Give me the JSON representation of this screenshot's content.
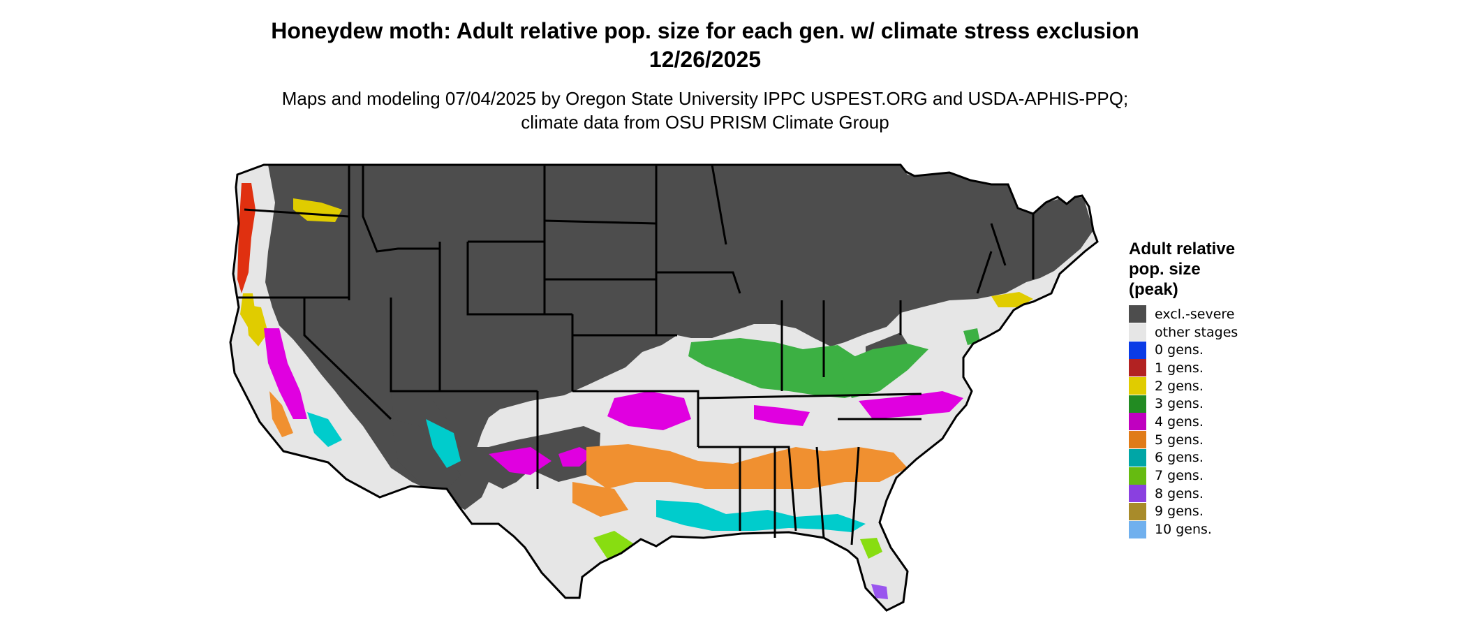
{
  "title": "Honeydew moth: Adult relative pop. size for each gen. w/ climate stress exclusion 12/26/2025",
  "subtitle": "Maps and modeling 07/04/2025 by Oregon State University IPPC USPEST.ORG and USDA-APHIS-PPQ; climate data from OSU PRISM Climate Group",
  "legend": {
    "title": "Adult relative pop. size (peak)",
    "items": [
      {
        "label": "excl.-severe",
        "color": "#4d4d4d"
      },
      {
        "label": "other stages",
        "color": "#e6e6e6"
      },
      {
        "label": "0 gens.",
        "color": "#0a3be6"
      },
      {
        "label": "1 gens.",
        "color": "#b22222"
      },
      {
        "label": "2 gens.",
        "color": "#e0cc00"
      },
      {
        "label": "3 gens.",
        "color": "#228b22"
      },
      {
        "label": "4 gens.",
        "color": "#c000c0"
      },
      {
        "label": "5 gens.",
        "color": "#e07b18"
      },
      {
        "label": "6 gens.",
        "color": "#00a6a6"
      },
      {
        "label": "7 gens.",
        "color": "#66bb11"
      },
      {
        "label": "8 gens.",
        "color": "#8a40e0"
      },
      {
        "label": "9 gens.",
        "color": "#a88b2a"
      },
      {
        "label": "10 gens.",
        "color": "#70b0ee"
      }
    ]
  },
  "map": {
    "region": "Continental United States",
    "colors": {
      "excluded": "#4d4d4d",
      "other": "#e6e6e6",
      "gen2": "#e0cc00",
      "gen3": "#3cb043",
      "gen4": "#e000e0",
      "gen5": "#f09030",
      "gen6": "#00cccc",
      "gen7": "#88dd11",
      "gen8": "#9955ee",
      "gen1": "#e03010",
      "border": "#000000"
    }
  }
}
